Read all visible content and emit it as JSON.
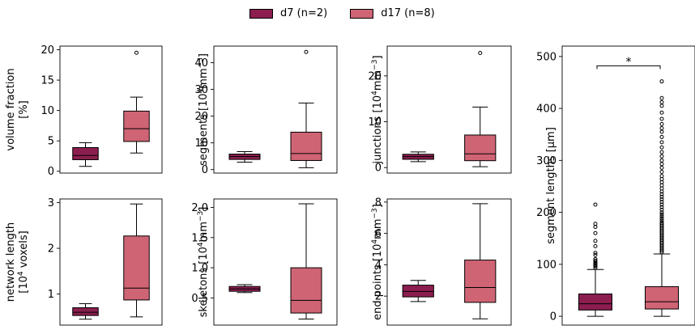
{
  "legend": {
    "items": [
      {
        "label": "d7 (n=2)",
        "color": "#8b1e4f"
      },
      {
        "label": "d17 (n=8)",
        "color": "#cf6474"
      }
    ]
  },
  "chart_data": [
    {
      "type": "box",
      "ylabel": "volume fraction\n[%]",
      "ylim": [
        -0.3,
        20.6
      ],
      "yticks": [
        0,
        5,
        10,
        15,
        20
      ],
      "yticklabels": [
        "0",
        "5",
        "10",
        "15",
        "20"
      ],
      "boxes": [
        {
          "group": "d7",
          "whislo": 0.8,
          "q1": 1.9,
          "med": 2.6,
          "q3": 3.9,
          "whishi": 4.7,
          "fliers": []
        },
        {
          "group": "d17",
          "whislo": 3.0,
          "q1": 4.9,
          "med": 7.0,
          "q3": 9.9,
          "whishi": 12.2,
          "fliers": [
            19.5
          ]
        }
      ]
    },
    {
      "type": "box",
      "ylabel": "segments [10$^4$mm$^{-3}$]",
      "ylim": [
        -1.3,
        46.2
      ],
      "yticks": [
        0,
        10,
        20,
        30,
        40
      ],
      "yticklabels": [
        "0",
        "10",
        "20",
        "30",
        "40"
      ],
      "boxes": [
        {
          "group": "d7",
          "whislo": 2.8,
          "q1": 3.8,
          "med": 4.9,
          "q3": 5.8,
          "whishi": 6.7,
          "fliers": []
        },
        {
          "group": "d17",
          "whislo": 0.7,
          "q1": 3.4,
          "med": 6.0,
          "q3": 14.0,
          "whishi": 24.9,
          "fliers": [
            44.0
          ]
        }
      ]
    },
    {
      "type": "box",
      "ylabel": "junctions [10$^4$mm$^{-3}$]",
      "ylim": [
        -1.2,
        26.5
      ],
      "yticks": [
        0,
        10,
        20
      ],
      "yticklabels": [
        "0",
        "10",
        "20"
      ],
      "boxes": [
        {
          "group": "d7",
          "whislo": 1.3,
          "q1": 1.8,
          "med": 2.4,
          "q3": 2.9,
          "whishi": 3.4,
          "fliers": []
        },
        {
          "group": "d17",
          "whislo": 0.2,
          "q1": 1.5,
          "med": 3.0,
          "q3": 7.1,
          "whishi": 13.2,
          "fliers": [
            25.0
          ]
        }
      ]
    },
    {
      "type": "box",
      "ylabel": "network length\n[10$^4$ voxels]",
      "ylim": [
        0.32,
        3.08
      ],
      "yticks": [
        1,
        2,
        3
      ],
      "yticklabels": [
        "1",
        "2",
        "3"
      ],
      "boxes": [
        {
          "group": "d7",
          "whislo": 0.45,
          "q1": 0.53,
          "med": 0.6,
          "q3": 0.7,
          "whishi": 0.79,
          "fliers": []
        },
        {
          "group": "d17",
          "whislo": 0.5,
          "q1": 0.87,
          "med": 1.13,
          "q3": 2.27,
          "whishi": 2.97,
          "fliers": []
        }
      ]
    },
    {
      "type": "box",
      "ylabel": "skeletons [10$^4$mm$^{-3}$]",
      "ylim": [
        0.05,
        2.14
      ],
      "yticks": [
        0.5,
        1.0,
        1.5,
        2.0
      ],
      "yticklabels": [
        "0.5",
        "1.0",
        "1.5",
        "2.0"
      ],
      "boxes": [
        {
          "group": "d7",
          "whislo": 0.59,
          "q1": 0.61,
          "med": 0.65,
          "q3": 0.69,
          "whishi": 0.72,
          "fliers": []
        },
        {
          "group": "d17",
          "whislo": 0.15,
          "q1": 0.25,
          "med": 0.46,
          "q3": 1.0,
          "whishi": 2.06,
          "fliers": []
        }
      ]
    },
    {
      "type": "box",
      "ylabel": "end points [10$^4$mm$^{-3}$]",
      "ylim": [
        0.15,
        8.2
      ],
      "yticks": [
        2,
        4,
        6,
        8
      ],
      "yticklabels": [
        "2",
        "4",
        "6",
        "8"
      ],
      "boxes": [
        {
          "group": "d7",
          "whislo": 1.65,
          "q1": 1.95,
          "med": 2.3,
          "q3": 2.7,
          "whishi": 3.0,
          "fliers": []
        },
        {
          "group": "d17",
          "whislo": 0.55,
          "q1": 1.6,
          "med": 2.55,
          "q3": 4.3,
          "whishi": 7.9,
          "fliers": []
        }
      ]
    },
    {
      "type": "box",
      "ylabel": "segment lengths [µm]",
      "ylim": [
        -17,
        520
      ],
      "yticks": [
        0,
        100,
        200,
        300,
        400,
        500
      ],
      "yticklabels": [
        "0",
        "100",
        "200",
        "300",
        "400",
        "500"
      ],
      "significance": {
        "label": "*",
        "y": 482
      },
      "boxes": [
        {
          "group": "d7",
          "whislo": 0,
          "q1": 12,
          "med": 24,
          "q3": 43,
          "whishi": 90,
          "fliers": [
            93,
            96,
            98,
            100,
            102,
            104,
            107,
            110,
            118,
            122,
            135,
            145,
            160,
            172,
            178,
            215
          ]
        },
        {
          "group": "d17",
          "whislo": 0,
          "q1": 14,
          "med": 28,
          "q3": 57,
          "whishi": 120,
          "fliers": [
            123,
            126,
            129,
            132,
            135,
            138,
            141,
            144,
            147,
            150,
            153,
            156,
            159,
            162,
            165,
            168,
            171,
            174,
            177,
            180,
            184,
            188,
            192,
            196,
            200,
            205,
            210,
            215,
            220,
            225,
            230,
            235,
            240,
            246,
            252,
            258,
            264,
            270,
            278,
            286,
            293,
            300,
            308,
            316,
            325,
            335,
            345,
            355,
            362,
            370,
            380,
            392,
            405,
            412,
            420,
            452
          ]
        }
      ]
    }
  ]
}
